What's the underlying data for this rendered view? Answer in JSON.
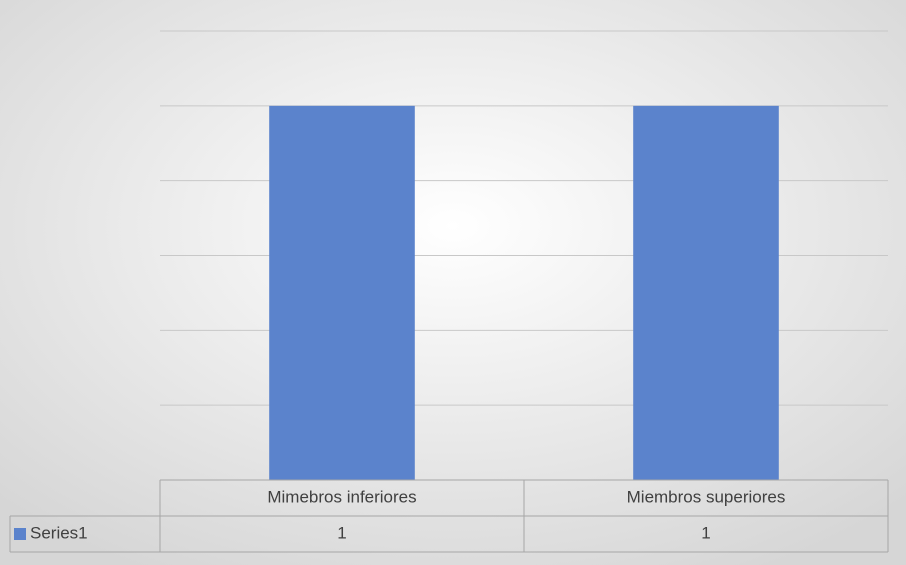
{
  "chart_data": {
    "type": "bar",
    "categories": [
      "Mimebros inferiores",
      "Miembros superiores"
    ],
    "series": [
      {
        "name": "Series1",
        "color": "#5b83cc",
        "values": [
          1,
          1
        ]
      }
    ],
    "ylim": [
      0,
      1.2
    ],
    "yticks": [
      0,
      0.2,
      0.4,
      0.6,
      0.8,
      1,
      1.2
    ],
    "grid": true
  }
}
